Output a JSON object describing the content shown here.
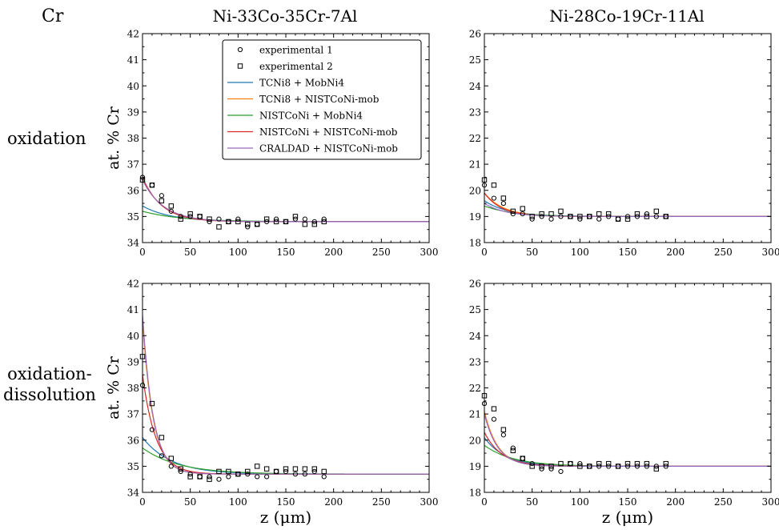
{
  "corner_label": "Cr",
  "column_titles": [
    "Ni-33Co-35Cr-7Al",
    "Ni-28Co-19Cr-11Al"
  ],
  "row_labels": [
    "oxidation",
    "oxidation-\ndissolution"
  ],
  "legend": [
    {
      "label": "experimental 1",
      "kind": "marker-circle"
    },
    {
      "label": "experimental 2",
      "kind": "marker-square"
    },
    {
      "label": "TCNi8 + MobNi4",
      "kind": "line",
      "color": "#1f77b4"
    },
    {
      "label": "TCNi8 + NISTCoNi-mob",
      "kind": "line",
      "color": "#ff7f0e"
    },
    {
      "label": "NISTCoNi + MobNi4",
      "kind": "line",
      "color": "#2ca02c"
    },
    {
      "label": "NISTCoNi + NISTCoNi-mob",
      "kind": "line",
      "color": "#d62728"
    },
    {
      "label": "CRALDAD + NISTCoNi-mob",
      "kind": "line",
      "color": "#9467bd"
    }
  ],
  "chart_data": [
    {
      "type": "line",
      "title": "Ni-33Co-35Cr-7Al",
      "row": "oxidation",
      "xlabel": "",
      "ylabel": "at. % Cr",
      "xlim": [
        0,
        300
      ],
      "ylim": [
        34,
        42
      ],
      "xticks": [
        0,
        50,
        100,
        150,
        200,
        250,
        300
      ],
      "yticks": [
        34,
        35,
        36,
        37,
        38,
        39,
        40,
        41,
        42
      ],
      "plateau": 34.8,
      "series": [
        {
          "name": "TCNi8 + MobNi4",
          "color": "#1f77b4",
          "y0": 35.4,
          "decay": 30
        },
        {
          "name": "TCNi8 + NISTCoNi-mob",
          "color": "#ff7f0e",
          "y0": 36.4,
          "decay": 22
        },
        {
          "name": "NISTCoNi + MobNi4",
          "color": "#2ca02c",
          "y0": 35.2,
          "decay": 40
        },
        {
          "name": "NISTCoNi + NISTCoNi-mob",
          "color": "#d62728",
          "y0": 36.5,
          "decay": 20
        },
        {
          "name": "CRALDAD + NISTCoNi-mob",
          "color": "#9467bd",
          "y0": 36.4,
          "decay": 22
        }
      ],
      "experimental_1": {
        "x": [
          0,
          10,
          20,
          30,
          40,
          50,
          60,
          70,
          80,
          90,
          100,
          110,
          120,
          130,
          140,
          150,
          160,
          170,
          180,
          190
        ],
        "y": [
          36.5,
          36.2,
          35.8,
          35.2,
          35.0,
          35.0,
          35.0,
          34.8,
          34.9,
          34.8,
          34.9,
          34.6,
          34.7,
          34.8,
          34.9,
          34.8,
          34.9,
          34.9,
          34.8,
          34.9
        ]
      },
      "experimental_2": {
        "x": [
          0,
          10,
          20,
          30,
          40,
          50,
          60,
          70,
          80,
          90,
          100,
          110,
          120,
          130,
          140,
          150,
          160,
          170,
          180,
          190
        ],
        "y": [
          36.4,
          36.2,
          35.6,
          35.4,
          34.9,
          35.1,
          35.0,
          34.9,
          34.6,
          34.8,
          34.8,
          34.7,
          34.7,
          34.9,
          34.8,
          34.8,
          35.0,
          34.7,
          34.7,
          34.8
        ]
      }
    },
    {
      "type": "line",
      "title": "Ni-28Co-19Cr-11Al",
      "row": "oxidation",
      "xlabel": "",
      "ylabel": "",
      "xlim": [
        0,
        300
      ],
      "ylim": [
        18,
        26
      ],
      "xticks": [
        0,
        50,
        100,
        150,
        200,
        250,
        300
      ],
      "yticks": [
        18,
        19,
        20,
        21,
        22,
        23,
        24,
        25,
        26
      ],
      "plateau": 19.0,
      "series": [
        {
          "name": "TCNi8 + MobNi4",
          "color": "#1f77b4",
          "y0": 19.6,
          "decay": 25
        },
        {
          "name": "TCNi8 + NISTCoNi-mob",
          "color": "#ff7f0e",
          "y0": 19.9,
          "decay": 20
        },
        {
          "name": "NISTCoNi + MobNi4",
          "color": "#2ca02c",
          "y0": 19.4,
          "decay": 30
        },
        {
          "name": "NISTCoNi + NISTCoNi-mob",
          "color": "#d62728",
          "y0": 19.9,
          "decay": 18
        },
        {
          "name": "CRALDAD + NISTCoNi-mob",
          "color": "#9467bd",
          "y0": 19.5,
          "decay": 22
        }
      ],
      "experimental_1": {
        "x": [
          0,
          10,
          20,
          30,
          40,
          50,
          60,
          70,
          80,
          90,
          100,
          110,
          120,
          130,
          140,
          150,
          160,
          170,
          180,
          190
        ],
        "y": [
          20.2,
          19.7,
          19.5,
          19.1,
          19.1,
          18.9,
          19.0,
          18.9,
          19.0,
          19.0,
          18.9,
          19.0,
          18.9,
          19.0,
          18.9,
          19.0,
          19.0,
          19.1,
          19.0,
          19.0
        ]
      },
      "experimental_2": {
        "x": [
          0,
          10,
          20,
          30,
          40,
          50,
          60,
          70,
          80,
          90,
          100,
          110,
          120,
          130,
          140,
          150,
          160,
          170,
          180,
          190
        ],
        "y": [
          20.4,
          20.2,
          19.7,
          19.2,
          19.3,
          19.0,
          19.1,
          19.1,
          19.2,
          19.0,
          19.0,
          19.0,
          19.1,
          19.1,
          18.9,
          18.9,
          19.1,
          19.0,
          19.2,
          19.0
        ]
      }
    },
    {
      "type": "line",
      "title": "",
      "row": "oxidation-dissolution",
      "xlabel": "z (μm)",
      "ylabel": "at. % Cr",
      "xlim": [
        0,
        300
      ],
      "ylim": [
        34,
        42
      ],
      "xticks": [
        0,
        50,
        100,
        150,
        200,
        250,
        300
      ],
      "yticks": [
        34,
        35,
        36,
        37,
        38,
        39,
        40,
        41,
        42
      ],
      "plateau": 34.7,
      "series": [
        {
          "name": "TCNi8 + MobNi4",
          "color": "#1f77b4",
          "y0": 36.1,
          "decay": 30
        },
        {
          "name": "TCNi8 + NISTCoNi-mob",
          "color": "#ff7f0e",
          "y0": 40.6,
          "decay": 11
        },
        {
          "name": "NISTCoNi + MobNi4",
          "color": "#2ca02c",
          "y0": 35.7,
          "decay": 38
        },
        {
          "name": "NISTCoNi + NISTCoNi-mob",
          "color": "#d62728",
          "y0": 38.5,
          "decay": 14
        },
        {
          "name": "CRALDAD + NISTCoNi-mob",
          "color": "#9467bd",
          "y0": 40.8,
          "decay": 11
        }
      ],
      "experimental_1": {
        "x": [
          0,
          10,
          20,
          30,
          40,
          50,
          60,
          70,
          80,
          90,
          100,
          110,
          120,
          130,
          140,
          150,
          160,
          170,
          180,
          190
        ],
        "y": [
          38.1,
          36.4,
          35.4,
          35.0,
          34.8,
          34.7,
          34.6,
          34.6,
          34.5,
          34.6,
          34.7,
          34.7,
          34.6,
          34.6,
          34.8,
          34.8,
          34.7,
          34.7,
          34.8,
          34.6
        ]
      },
      "experimental_2": {
        "x": [
          0,
          10,
          20,
          30,
          40,
          50,
          60,
          70,
          80,
          90,
          100,
          110,
          120,
          130,
          140,
          150,
          160,
          170,
          180,
          190
        ],
        "y": [
          39.2,
          37.4,
          36.1,
          35.3,
          34.9,
          34.6,
          34.6,
          34.5,
          34.8,
          34.8,
          34.7,
          34.8,
          35.0,
          34.9,
          34.8,
          34.9,
          34.9,
          34.9,
          34.9,
          34.8
        ]
      }
    },
    {
      "type": "line",
      "title": "",
      "row": "oxidation-dissolution",
      "xlabel": "z (μm)",
      "ylabel": "",
      "xlim": [
        0,
        300
      ],
      "ylim": [
        18,
        26
      ],
      "xticks": [
        0,
        50,
        100,
        150,
        200,
        250,
        300
      ],
      "yticks": [
        18,
        19,
        20,
        21,
        22,
        23,
        24,
        25,
        26
      ],
      "plateau": 19.0,
      "series": [
        {
          "name": "TCNi8 + MobNi4",
          "color": "#1f77b4",
          "y0": 20.1,
          "decay": 22
        },
        {
          "name": "TCNi8 + NISTCoNi-mob",
          "color": "#ff7f0e",
          "y0": 21.1,
          "decay": 14
        },
        {
          "name": "NISTCoNi + MobNi4",
          "color": "#2ca02c",
          "y0": 19.8,
          "decay": 30
        },
        {
          "name": "NISTCoNi + NISTCoNi-mob",
          "color": "#d62728",
          "y0": 20.3,
          "decay": 18
        },
        {
          "name": "CRALDAD + NISTCoNi-mob",
          "color": "#9467bd",
          "y0": 21.0,
          "decay": 14
        }
      ],
      "experimental_1": {
        "x": [
          0,
          10,
          20,
          30,
          40,
          50,
          60,
          70,
          80,
          90,
          100,
          110,
          120,
          130,
          140,
          150,
          160,
          170,
          180,
          190
        ],
        "y": [
          21.4,
          20.8,
          20.2,
          19.7,
          19.3,
          19.1,
          18.9,
          18.9,
          18.8,
          19.1,
          19.1,
          19.0,
          19.0,
          19.0,
          19.0,
          19.0,
          19.0,
          19.0,
          19.0,
          19.0
        ]
      },
      "experimental_2": {
        "x": [
          0,
          10,
          20,
          30,
          40,
          50,
          60,
          70,
          80,
          90,
          100,
          110,
          120,
          130,
          140,
          150,
          160,
          170,
          180,
          190
        ],
        "y": [
          21.7,
          21.2,
          20.4,
          19.6,
          19.3,
          19.0,
          19.0,
          19.0,
          19.1,
          19.1,
          19.0,
          19.0,
          19.1,
          19.1,
          19.0,
          19.1,
          19.1,
          19.1,
          18.9,
          19.1
        ]
      }
    }
  ]
}
